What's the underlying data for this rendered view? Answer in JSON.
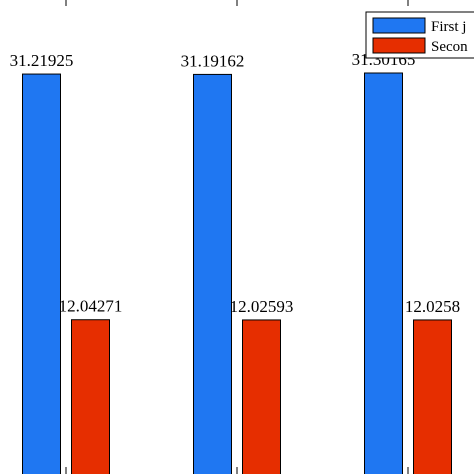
{
  "chart_data": {
    "type": "bar",
    "categories": [
      "",
      "",
      ""
    ],
    "series": [
      {
        "name": "First j",
        "color": "#1f77f2",
        "values": [
          31.21925,
          31.19162,
          31.30165
        ]
      },
      {
        "name": "Secon",
        "color": "#e62e00",
        "values": [
          12.04271,
          12.02593,
          12.0258
        ]
      }
    ],
    "data_labels": [
      [
        "31.21925",
        "31.19162",
        "31.30165"
      ],
      [
        "12.04271",
        "12.02593",
        "12.0258"
      ]
    ],
    "ylim": [
      0,
      37
    ],
    "legend": "top-right",
    "grid": false,
    "title": "",
    "xlabel": "",
    "ylabel": ""
  }
}
